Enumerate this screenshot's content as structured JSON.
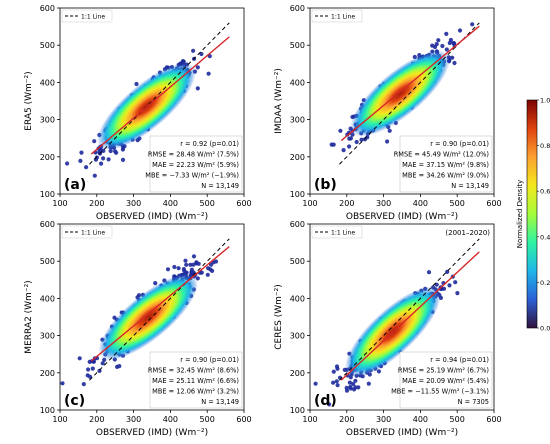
{
  "figure": {
    "colorbar": {
      "label": "Normalized Density",
      "ticks": [
        "0.0",
        "0.2",
        "0.4",
        "0.6",
        "0.8",
        "1.0"
      ],
      "stops": [
        "#30123b",
        "#2b5fd6",
        "#1fb6e9",
        "#2ef3a3",
        "#a4fc3c",
        "#f4e81d",
        "#fca130",
        "#e0420f",
        "#7a0403"
      ]
    },
    "fit_line_color": "#d62728",
    "one_to_one_color": "#000000",
    "point_color": "#1e2a9c"
  },
  "chart_data": [
    {
      "type": "scatter",
      "panel": "(a)",
      "ylabel": "ERA5",
      "ylabel_unit": "(Wm⁻²)",
      "xlabel": "OBSERVED (IMD) (Wm⁻²)",
      "xlim": [
        100,
        600
      ],
      "ylim": [
        100,
        600
      ],
      "xticks": [
        "100",
        "200",
        "300",
        "400",
        "500",
        "600"
      ],
      "yticks": [
        "100",
        "200",
        "300",
        "400",
        "500",
        "600"
      ],
      "legend": "1:1 Line",
      "extra_label": "",
      "fit": {
        "slope": 0.84,
        "intercept": 52
      },
      "density_center": [
        335,
        335
      ],
      "stats": [
        "r  = 0.92 (p=0.01)",
        "RMSE = 28.48 W/m² (7.5%)",
        "MAE = 22.23 W/m² (5.9%)",
        "MBE = −7.33 W/m² (−1.9%)",
        "N = 13,149"
      ]
    },
    {
      "type": "scatter",
      "panel": "(b)",
      "ylabel": "IMDAA",
      "ylabel_unit": "(Wm⁻²)",
      "xlabel": "OBSERVED (IMD) (Wm⁻²)",
      "xlim": [
        100,
        600
      ],
      "ylim": [
        100,
        600
      ],
      "xticks": [
        "100",
        "200",
        "300",
        "400",
        "500",
        "600"
      ],
      "yticks": [
        "100",
        "200",
        "300",
        "400",
        "500",
        "600"
      ],
      "legend": "1:1 Line",
      "extra_label": "",
      "fit": {
        "slope": 0.82,
        "intercept": 92
      },
      "density_center": [
        345,
        370
      ],
      "stats": [
        "r  = 0.90 (p=0.01)",
        "RMSE = 45.49 W/m² (12.0%)",
        "MAE = 37.15 W/m² (9.8%)",
        "MBE = 34.26 W/m² (9.0%)",
        "N = 13,149"
      ]
    },
    {
      "type": "scatter",
      "panel": "(c)",
      "ylabel": "MERRA2",
      "ylabel_unit": "(Wm⁻²)",
      "xlabel": "OBSERVED (IMD) (Wm⁻²)",
      "xlim": [
        100,
        600
      ],
      "ylim": [
        100,
        600
      ],
      "xticks": [
        "100",
        "200",
        "300",
        "400",
        "500",
        "600"
      ],
      "yticks": [
        "100",
        "200",
        "300",
        "400",
        "500",
        "600"
      ],
      "legend": "1:1 Line",
      "extra_label": "",
      "fit": {
        "slope": 0.82,
        "intercept": 80
      },
      "density_center": [
        340,
        350
      ],
      "stats": [
        "r  = 0.90 (p=0.01)",
        "RMSE = 32.45 W/m² (8.6%)",
        "MAE = 25.11 W/m² (6.6%)",
        "MBE = 12.06 W/m² (3.2%)",
        "N = 13,149"
      ]
    },
    {
      "type": "scatter",
      "panel": "(d)",
      "ylabel": "CERES",
      "ylabel_unit": "(Wm⁻²)",
      "xlabel": "OBSERVED (IMD) (Wm⁻²)",
      "xlim": [
        100,
        600
      ],
      "ylim": [
        100,
        600
      ],
      "xticks": [
        "100",
        "200",
        "300",
        "400",
        "500",
        "600"
      ],
      "yticks": [
        "100",
        "200",
        "300",
        "400",
        "500",
        "600"
      ],
      "legend": "1:1 Line",
      "extra_label": "(2001–2020)",
      "fit": {
        "slope": 0.92,
        "intercept": 10
      },
      "density_center": [
        325,
        310
      ],
      "stats": [
        "r  = 0.94 (p=0.01)",
        "RMSE = 25.19 W/m² (6.7%)",
        "MAE = 20.09 W/m² (5.4%)",
        "MBE = −11.55 W/m² (−3.1%)",
        "N = 7305"
      ]
    }
  ]
}
